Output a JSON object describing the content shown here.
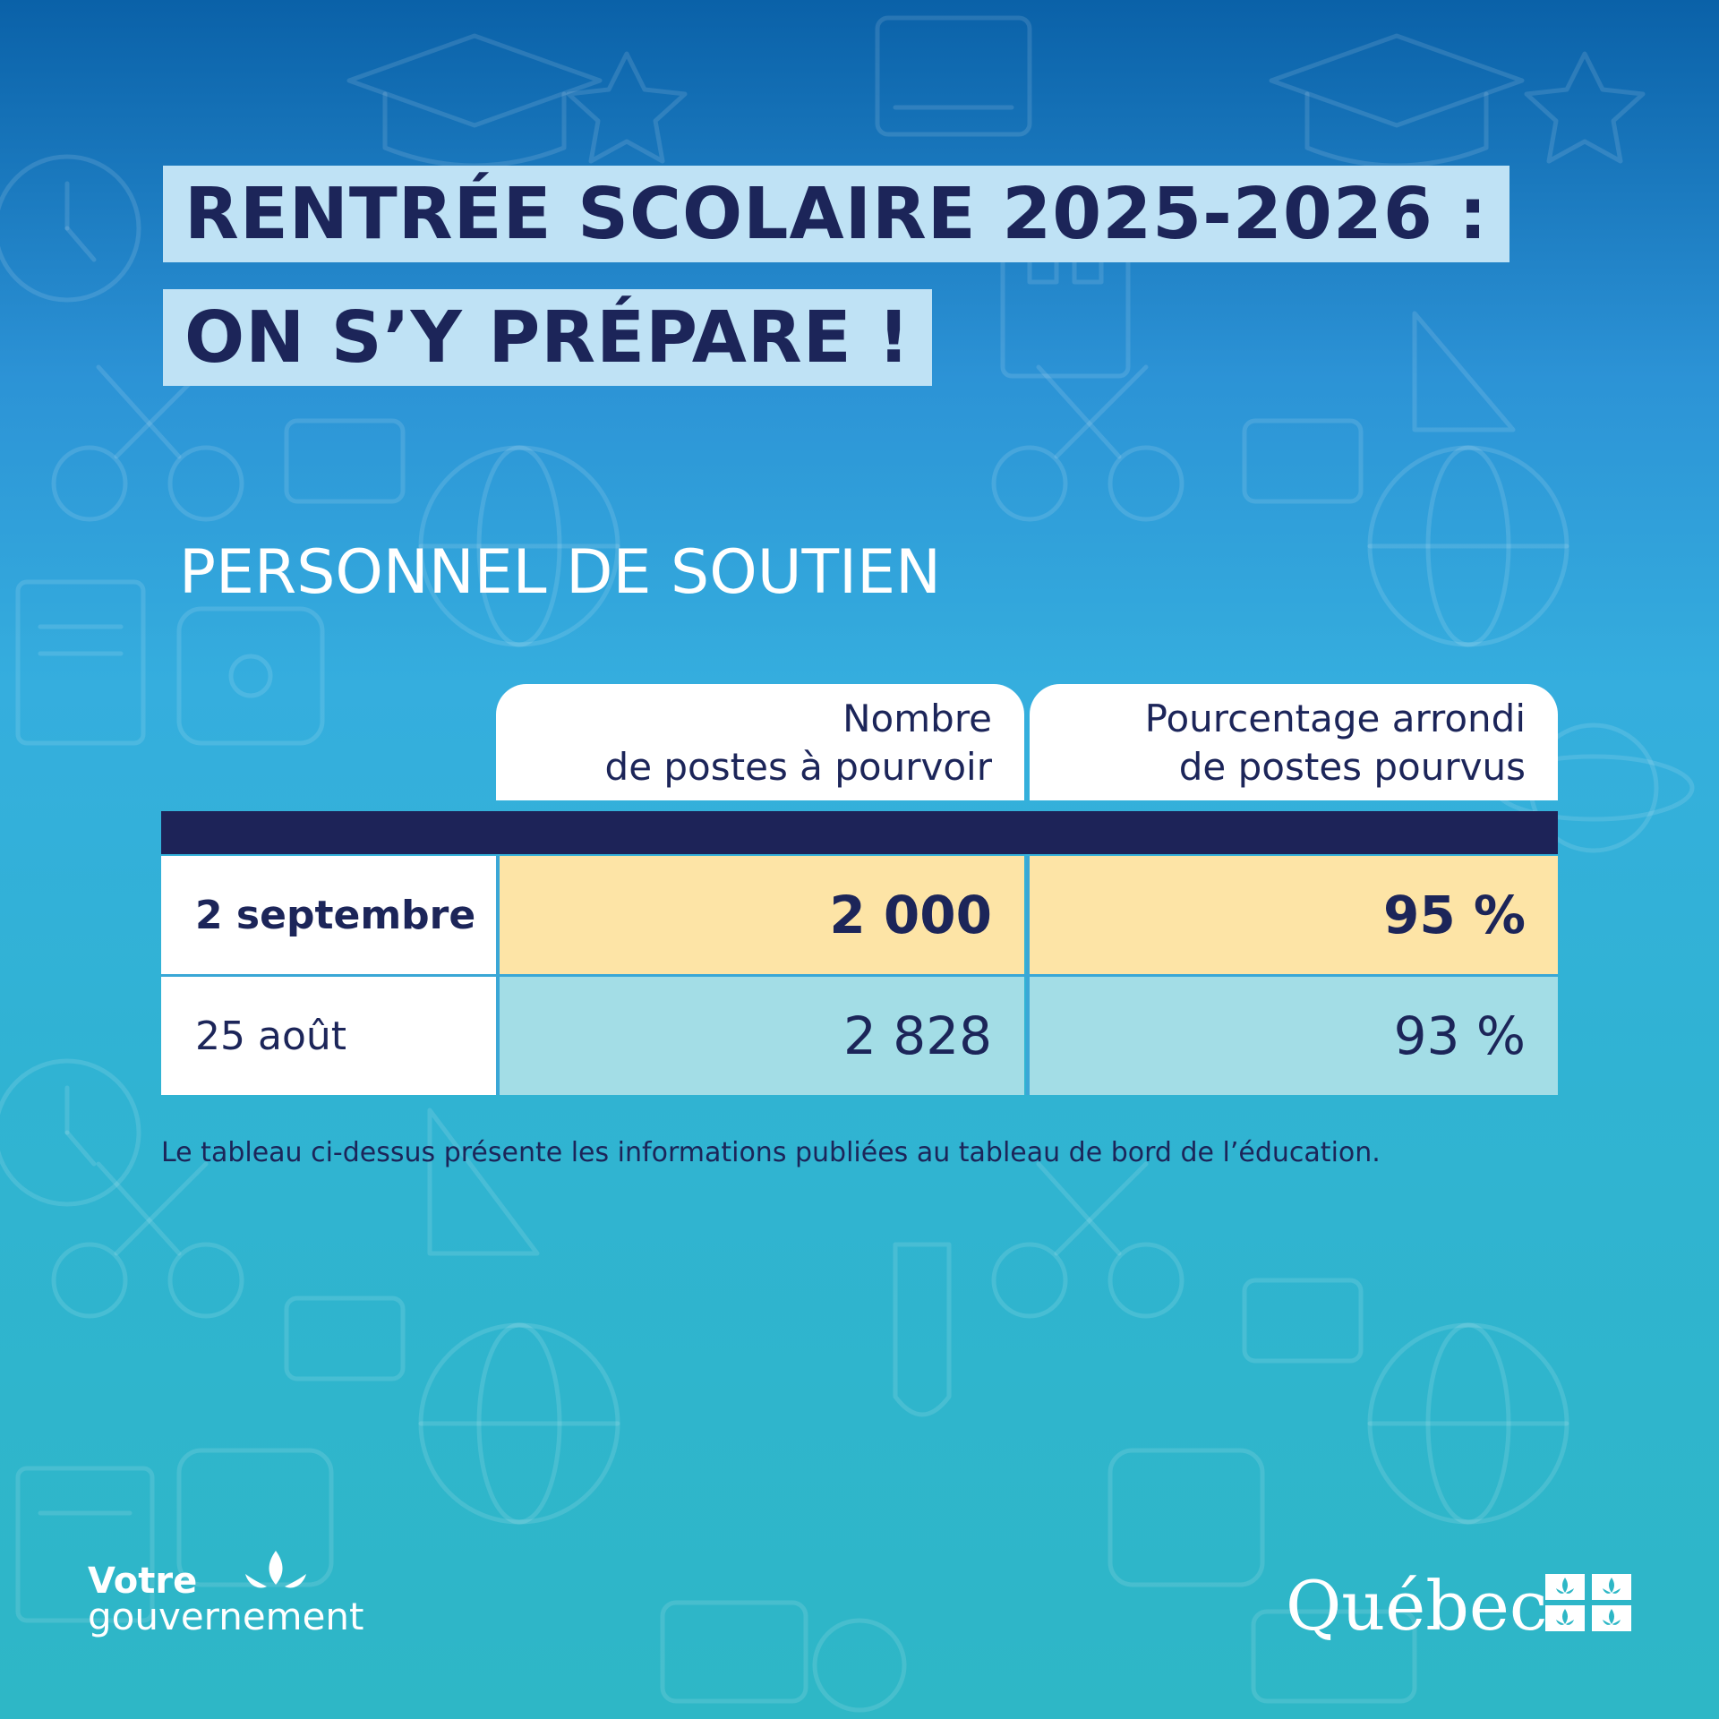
{
  "title": {
    "line1": "RENTRÉE SCOLAIRE 2025-2026 :",
    "line2": "ON S’Y PRÉPARE !"
  },
  "section_title": "PERSONNEL DE SOUTIEN",
  "table": {
    "columns": [
      {
        "line1": "Nombre",
        "line2": "de postes à pourvoir"
      },
      {
        "line1": "Pourcentage arrondi",
        "line2": "de postes pourvus"
      }
    ],
    "rows": [
      {
        "label": "2 septembre",
        "postes_a_pourvoir": "2 000",
        "pourcentage_pourvus": "95 %",
        "highlighted": true
      },
      {
        "label": "25 août",
        "postes_a_pourvoir": "2 828",
        "pourcentage_pourvus": "93 %",
        "highlighted": false
      }
    ]
  },
  "footnote": "Le tableau ci-dessus présente les informations publiées au tableau de bord de l’éducation.",
  "branding": {
    "left_logo_line1": "Votre",
    "left_logo_line2": "gouvernement",
    "right_logo_word": "Québec",
    "left_logo_icon": "fleur-de-lis-icon",
    "right_logo_icon": "quebec-flag-icon"
  },
  "colors": {
    "navy": "#1d2358",
    "title_band": "#bfe2f5",
    "highlight_row": "#fde4a6",
    "second_row": "#a3dde6",
    "background_top": "#0a61a8",
    "background_bottom": "#2eb7c6"
  }
}
